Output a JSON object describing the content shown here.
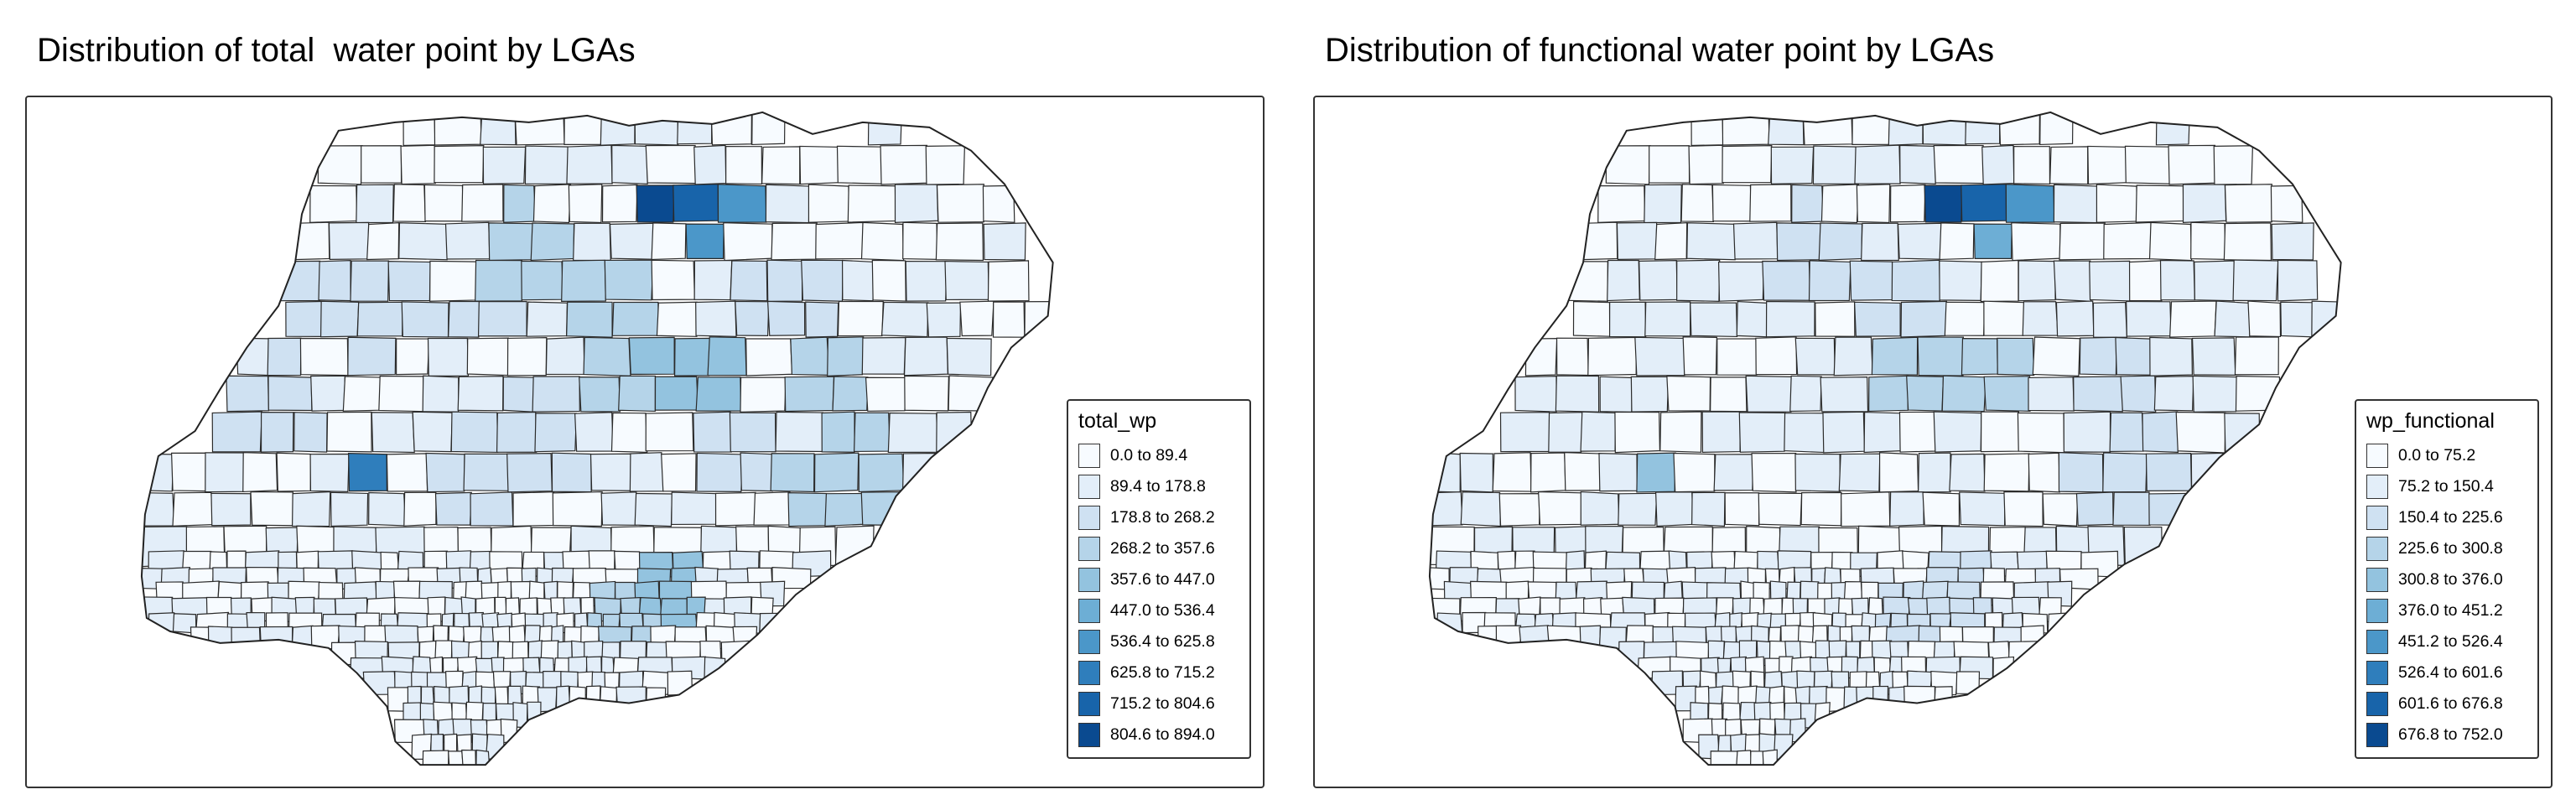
{
  "maps": [
    {
      "title": "Distribution of total  water point by LGAs",
      "legend": {
        "title": "total_wp",
        "classes": [
          {
            "label": "0.0 to 89.4",
            "color": "#f7fbff"
          },
          {
            "label": "89.4 to 178.8",
            "color": "#e3eef9"
          },
          {
            "label": "178.8 to 268.2",
            "color": "#cfe1f2"
          },
          {
            "label": "268.2 to 357.6",
            "color": "#b5d4e9"
          },
          {
            "label": "357.6 to 447.0",
            "color": "#93c3df"
          },
          {
            "label": "447.0 to 536.4",
            "color": "#6daed5"
          },
          {
            "label": "536.4 to 625.8",
            "color": "#4b97c9"
          },
          {
            "label": "625.8 to 715.2",
            "color": "#2f7ebc"
          },
          {
            "label": "715.2 to 804.6",
            "color": "#1864aa"
          },
          {
            "label": "804.6 to 894.0",
            "color": "#0a4a90"
          }
        ]
      }
    },
    {
      "title": "Distribution of functional water point by LGAs",
      "legend": {
        "title": "wp_functional",
        "classes": [
          {
            "label": "0.0 to 75.2",
            "color": "#f7fbff"
          },
          {
            "label": "75.2 to 150.4",
            "color": "#e3eef9"
          },
          {
            "label": "150.4 to 225.6",
            "color": "#cfe1f2"
          },
          {
            "label": "225.6 to 300.8",
            "color": "#b5d4e9"
          },
          {
            "label": "300.8 to 376.0",
            "color": "#93c3df"
          },
          {
            "label": "376.0 to 451.2",
            "color": "#6daed5"
          },
          {
            "label": "451.2 to 526.4",
            "color": "#4b97c9"
          },
          {
            "label": "526.4 to 601.6",
            "color": "#2f7ebc"
          },
          {
            "label": "601.6 to 676.8",
            "color": "#1864aa"
          },
          {
            "label": "676.8 to 752.0",
            "color": "#0a4a90"
          }
        ]
      }
    }
  ]
}
